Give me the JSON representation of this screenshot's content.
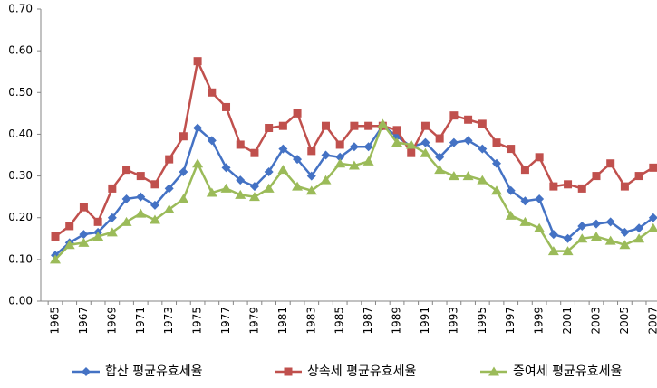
{
  "chart_data": {
    "type": "line",
    "categories": [
      "1965",
      null,
      "1967",
      null,
      "1969",
      null,
      "1971",
      null,
      "1973",
      null,
      "1975",
      null,
      "1977",
      null,
      "1979",
      null,
      "1981",
      null,
      "1983",
      null,
      "1985",
      null,
      "1987",
      null,
      "1989",
      null,
      "1991",
      null,
      "1993",
      null,
      "1995",
      null,
      "1997",
      null,
      "1999",
      null,
      "2001",
      null,
      "2003",
      null,
      "2005",
      null,
      "2007"
    ],
    "series": [
      {
        "name": "합산 평균유효세율",
        "color": "#4472c4",
        "marker": "diamond",
        "values": [
          0.11,
          0.14,
          0.16,
          0.165,
          0.2,
          0.245,
          0.25,
          0.23,
          0.27,
          0.31,
          0.415,
          0.385,
          0.32,
          0.29,
          0.275,
          0.31,
          0.365,
          0.34,
          0.3,
          0.35,
          0.345,
          0.37,
          0.37,
          0.42,
          0.395,
          0.37,
          0.38,
          0.345,
          0.38,
          0.385,
          0.365,
          0.33,
          0.265,
          0.24,
          0.245,
          0.16,
          0.15,
          0.18,
          0.185,
          0.19,
          0.165,
          0.175,
          0.2
        ]
      },
      {
        "name": "상속세 평균유효세율",
        "color": "#c0504d",
        "marker": "square",
        "values": [
          0.155,
          0.18,
          0.225,
          0.19,
          0.27,
          0.315,
          0.3,
          0.28,
          0.34,
          0.395,
          0.575,
          0.5,
          0.465,
          0.375,
          0.355,
          0.415,
          0.42,
          0.45,
          0.36,
          0.42,
          0.375,
          0.42,
          0.42,
          0.42,
          0.41,
          0.355,
          0.42,
          0.39,
          0.445,
          0.435,
          0.425,
          0.38,
          0.365,
          0.315,
          0.345,
          0.275,
          0.28,
          0.27,
          0.3,
          0.33,
          0.275,
          0.3,
          0.32
        ]
      },
      {
        "name": "증여세 평균유효세율",
        "color": "#9bbb59",
        "marker": "triangle",
        "values": [
          0.1,
          0.135,
          0.14,
          0.155,
          0.165,
          0.19,
          0.21,
          0.195,
          0.22,
          0.245,
          0.33,
          0.26,
          0.27,
          0.255,
          0.25,
          0.27,
          0.315,
          0.275,
          0.265,
          0.29,
          0.33,
          0.325,
          0.335,
          0.425,
          0.38,
          0.375,
          0.355,
          0.315,
          0.3,
          0.3,
          0.29,
          0.265,
          0.205,
          0.19,
          0.175,
          0.12,
          0.12,
          0.15,
          0.155,
          0.145,
          0.135,
          0.15,
          0.175
        ]
      }
    ],
    "ylim": [
      0,
      0.7
    ],
    "yticks": [
      {
        "value": 0,
        "label": "0.00"
      },
      {
        "value": 0.1,
        "label": "0.10"
      },
      {
        "value": 0.2,
        "label": "0.20"
      },
      {
        "value": 0.3,
        "label": "0.30"
      },
      {
        "value": 0.4,
        "label": "0.40"
      },
      {
        "value": 0.5,
        "label": "0.50"
      },
      {
        "value": 0.6,
        "label": "0.60"
      },
      {
        "value": 0.7,
        "label": "0.70"
      }
    ],
    "grid": false,
    "legend": "bottom"
  }
}
